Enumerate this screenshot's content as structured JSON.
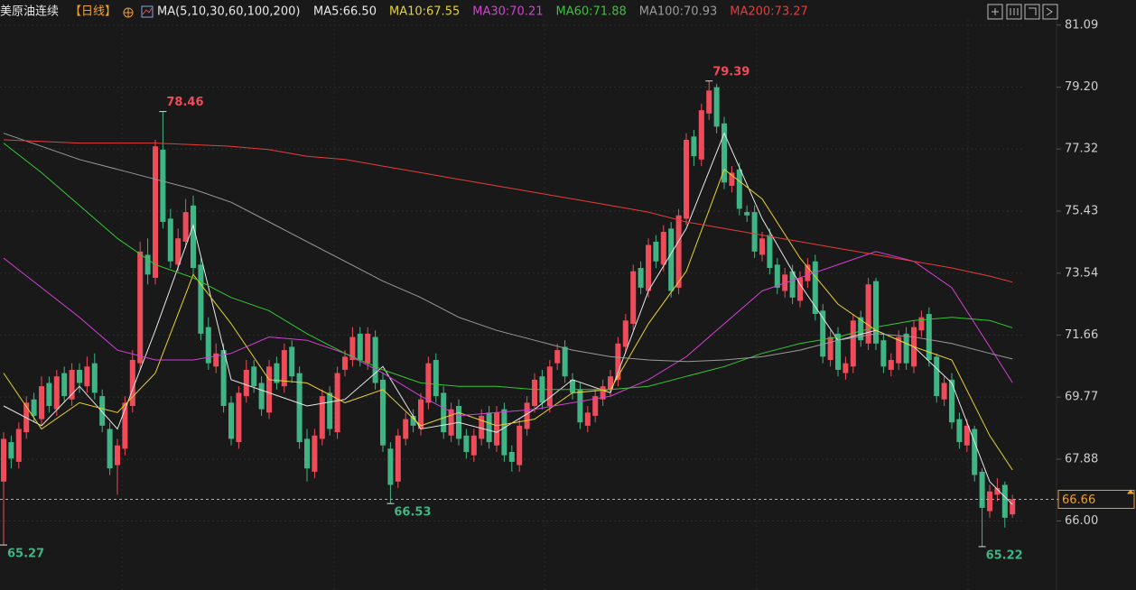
{
  "chart_data": {
    "type": "candlestick",
    "title": "美原油连续",
    "period": "【日线】",
    "ma_label": "MA(5,10,30,60,100,200)",
    "up_color": "#ee4c5a",
    "down_color": "#3fb484",
    "last_line_color": "#f0a030",
    "grid": true,
    "ylim": [
      63.9,
      81.25
    ],
    "yticks": [
      81.09,
      {
        "value": 79.2,
        "label": "79.20"
      },
      77.32,
      75.43,
      73.54,
      71.66,
      69.77,
      67.88,
      {
        "value": 66,
        "label": "66.00"
      }
    ],
    "open": [
      67.2,
      68.4,
      67.8,
      68.7,
      69.7,
      69.1,
      70.2,
      69.4,
      70.5,
      69.7,
      70.6,
      70.1,
      70.8,
      69.8,
      68.8,
      67.7,
      68.2,
      69.5,
      70.8,
      74.1,
      73.4,
      77.3,
      75.2,
      73.8,
      74.5,
      75.6,
      73.8,
      71.9,
      70.7,
      71.2,
      69.6,
      68.4,
      69.8,
      70.7,
      70.2,
      69.3,
      70.8,
      70.1,
      71.3,
      70.5,
      68.5,
      67.5,
      68.5,
      69.9,
      68.7,
      70.6,
      70.9,
      71.7,
      70.8,
      71.6,
      70.3,
      68.2,
      67.2,
      68.5,
      69.2,
      68.8,
      69.6,
      70.9,
      69.9,
      68.6,
      69.5,
      68.6,
      68.0,
      68.5,
      69.3,
      68.3,
      69.4,
      68.1,
      67.7,
      68.8,
      69.5,
      70.4,
      69.5,
      70.8,
      71.3,
      70.3,
      70.0,
      68.9,
      69.2,
      69.7,
      70.0,
      70.3,
      71.3,
      72.0,
      73.7,
      73.0,
      74.5,
      73.8,
      74.9,
      73.1,
      75.2,
      77.7,
      77.0,
      78.4,
      79.2,
      78.1,
      76.2,
      76.7,
      75.4,
      75.4,
      74.1,
      74.7,
      73.8,
      73.0,
      73.6,
      72.7,
      73.3,
      73.9,
      72.4,
      70.9,
      71.7,
      70.5,
      70.7,
      72.2,
      71.4,
      73.3,
      71.5,
      70.6,
      70.8,
      71.7,
      70.7,
      71.8,
      72.3,
      71.0,
      69.7,
      70.3,
      69.1,
      68.3,
      68.8,
      67.5,
      66.3,
      66.8,
      67.1,
      66.2
    ],
    "high": [
      68.7,
      68.6,
      69.0,
      69.8,
      69.9,
      70.4,
      70.4,
      70.6,
      70.7,
      70.8,
      70.8,
      71.0,
      71.1,
      70.0,
      69.0,
      68.5,
      69.8,
      71.2,
      74.5,
      74.6,
      77.6,
      78.46,
      75.5,
      74.9,
      75.8,
      75.9,
      74.0,
      72.2,
      71.4,
      71.4,
      69.8,
      70.1,
      70.9,
      70.9,
      70.4,
      70.9,
      71.0,
      71.4,
      71.5,
      70.7,
      68.8,
      68.8,
      70.0,
      70.1,
      70.7,
      71.2,
      71.9,
      71.9,
      71.9,
      71.8,
      70.5,
      68.4,
      68.8,
      69.3,
      69.4,
      69.9,
      71.0,
      71.1,
      70.1,
      69.6,
      69.7,
      68.8,
      68.8,
      69.4,
      69.5,
      69.5,
      69.6,
      68.3,
      69.1,
      69.8,
      70.5,
      70.6,
      70.9,
      71.4,
      71.5,
      70.5,
      70.2,
      69.5,
      70.0,
      70.3,
      70.6,
      71.6,
      72.3,
      73.8,
      73.9,
      74.6,
      74.7,
      75.0,
      75.1,
      75.5,
      77.8,
      77.9,
      78.7,
      79.39,
      79.3,
      78.3,
      76.8,
      76.9,
      75.6,
      75.6,
      74.8,
      74.9,
      74.0,
      73.7,
      73.8,
      73.6,
      74.0,
      74.1,
      72.6,
      71.8,
      71.9,
      71.0,
      72.3,
      72.4,
      73.4,
      73.4,
      71.7,
      71.1,
      71.8,
      71.9,
      72.1,
      72.4,
      72.5,
      71.1,
      70.4,
      70.5,
      69.3,
      69.1,
      68.9,
      67.6,
      67.1,
      67.3,
      67.2,
      66.8
    ],
    "low": [
      65.27,
      67.6,
      67.6,
      68.5,
      69.0,
      68.9,
      69.3,
      69.2,
      69.6,
      69.5,
      69.9,
      69.9,
      69.7,
      68.7,
      67.4,
      66.8,
      68.0,
      69.3,
      70.6,
      73.2,
      73.2,
      74.9,
      73.7,
      73.6,
      74.3,
      73.5,
      71.5,
      70.6,
      70.5,
      69.3,
      68.3,
      68.2,
      69.6,
      69.9,
      69.2,
      69.1,
      70.0,
      69.9,
      70.2,
      68.2,
      67.2,
      67.3,
      68.3,
      68.6,
      68.5,
      70.4,
      70.7,
      70.7,
      70.6,
      70.0,
      68.1,
      66.53,
      67.0,
      68.3,
      68.7,
      68.6,
      69.4,
      69.6,
      68.5,
      68.4,
      68.3,
      67.9,
      67.8,
      68.3,
      68.2,
      68.1,
      67.8,
      67.5,
      67.5,
      68.6,
      69.3,
      69.4,
      69.3,
      70.6,
      70.2,
      69.7,
      68.8,
      68.7,
      69.0,
      69.5,
      69.8,
      70.1,
      71.1,
      71.8,
      72.9,
      72.8,
      73.7,
      73.6,
      72.8,
      72.9,
      75.0,
      76.8,
      76.8,
      78.2,
      77.8,
      76.1,
      76.0,
      75.3,
      75.1,
      74.0,
      73.9,
      73.5,
      72.9,
      72.8,
      72.6,
      72.5,
      73.1,
      72.1,
      70.8,
      70.7,
      70.4,
      70.3,
      70.5,
      71.3,
      71.2,
      71.2,
      70.5,
      70.4,
      70.6,
      70.6,
      70.5,
      71.6,
      70.7,
      69.6,
      69.5,
      68.8,
      68.2,
      68.1,
      67.2,
      65.22,
      66.1,
      66.6,
      65.8,
      66.1
    ],
    "close": [
      68.5,
      67.9,
      68.8,
      69.6,
      69.2,
      70.1,
      69.5,
      70.4,
      69.8,
      70.6,
      70.2,
      70.7,
      69.9,
      68.9,
      67.6,
      68.3,
      69.6,
      70.9,
      74.2,
      73.5,
      77.4,
      75.1,
      73.9,
      74.6,
      75.4,
      73.7,
      71.7,
      70.8,
      71.1,
      69.5,
      68.5,
      69.9,
      70.6,
      70.1,
      69.4,
      70.7,
      70.2,
      71.2,
      70.4,
      68.4,
      67.6,
      68.6,
      69.8,
      68.8,
      70.5,
      71.0,
      71.6,
      70.9,
      71.7,
      70.2,
      68.3,
      67.1,
      68.6,
      69.1,
      68.9,
      69.7,
      70.8,
      69.8,
      68.7,
      69.4,
      68.5,
      68.1,
      68.6,
      69.2,
      68.4,
      69.3,
      68.0,
      67.8,
      68.9,
      69.6,
      70.3,
      69.6,
      70.7,
      71.2,
      70.4,
      69.9,
      69.0,
      69.3,
      69.8,
      70.1,
      70.4,
      71.4,
      72.1,
      73.6,
      73.1,
      74.4,
      73.9,
      74.8,
      73.0,
      75.3,
      77.6,
      77.1,
      78.5,
      79.1,
      78.0,
      76.3,
      76.6,
      75.5,
      75.3,
      74.2,
      74.6,
      73.7,
      73.1,
      73.5,
      72.8,
      73.4,
      73.8,
      72.3,
      71.0,
      71.6,
      70.6,
      70.8,
      72.1,
      71.5,
      73.2,
      71.4,
      70.7,
      70.9,
      71.6,
      70.8,
      71.9,
      72.2,
      70.9,
      69.8,
      70.2,
      69.0,
      68.4,
      68.9,
      67.4,
      66.4,
      66.9,
      67.0,
      66.1,
      66.66
    ],
    "ma_x": [
      0,
      5,
      10,
      15,
      20,
      25,
      30,
      35,
      40,
      45,
      50,
      55,
      60,
      65,
      70,
      75,
      80,
      85,
      90,
      95,
      100,
      105,
      110,
      115,
      120,
      125,
      130,
      133
    ],
    "series": [
      {
        "name": "MA5",
        "legend_label": "MA5:66.50",
        "color": "#e8e8e8",
        "values": [
          69.5,
          68.9,
          70.1,
          68.8,
          71.8,
          75.0,
          70.3,
          69.9,
          69.5,
          69.7,
          70.7,
          68.8,
          69.0,
          68.7,
          69.4,
          70.3,
          69.9,
          73.0,
          74.9,
          77.8,
          75.2,
          73.2,
          71.5,
          71.8,
          71.3,
          70.2,
          67.2,
          66.5
        ]
      },
      {
        "name": "MA10",
        "legend_label": "MA10:67.55",
        "color": "#e6d22e",
        "values": [
          70.5,
          68.8,
          69.6,
          69.3,
          70.5,
          73.5,
          72.0,
          70.3,
          70.2,
          69.6,
          70.0,
          68.9,
          69.3,
          68.9,
          69.1,
          69.9,
          70.0,
          72.0,
          73.6,
          76.7,
          75.8,
          74.0,
          72.6,
          71.8,
          71.3,
          70.9,
          68.6,
          67.55
        ]
      },
      {
        "name": "MA30",
        "legend_label": "MA30:70.21",
        "color": "#d440d4",
        "values": [
          74.0,
          73.1,
          72.2,
          71.2,
          70.9,
          70.9,
          71.1,
          71.6,
          71.5,
          71.1,
          70.5,
          69.8,
          69.2,
          69.3,
          69.4,
          69.6,
          69.8,
          70.3,
          71.0,
          72.0,
          73.0,
          73.4,
          73.8,
          74.2,
          73.9,
          73.1,
          71.3,
          70.21
        ]
      },
      {
        "name": "MA60",
        "legend_label": "MA60:71.88",
        "color": "#34c734",
        "values": [
          77.5,
          76.6,
          75.6,
          74.6,
          73.8,
          73.4,
          72.8,
          72.4,
          71.7,
          71.1,
          70.6,
          70.2,
          70.1,
          70.1,
          70.0,
          70.0,
          70.0,
          70.1,
          70.4,
          70.7,
          71.1,
          71.4,
          71.6,
          71.9,
          72.1,
          72.2,
          72.1,
          71.88
        ]
      },
      {
        "name": "MA100",
        "legend_label": "MA100:70.93",
        "color": "#9a9a9a",
        "values": [
          77.8,
          77.4,
          77.0,
          76.7,
          76.4,
          76.1,
          75.7,
          75.1,
          74.5,
          73.9,
          73.3,
          72.8,
          72.2,
          71.8,
          71.5,
          71.2,
          71.0,
          70.9,
          70.85,
          70.9,
          71.0,
          71.2,
          71.5,
          71.7,
          71.6,
          71.4,
          71.1,
          70.93
        ]
      },
      {
        "name": "MA200",
        "legend_label": "MA200:73.27",
        "color": "#e83b3b",
        "values": [
          77.6,
          77.55,
          77.5,
          77.5,
          77.5,
          77.45,
          77.4,
          77.3,
          77.1,
          77.0,
          76.8,
          76.6,
          76.4,
          76.2,
          76.0,
          75.8,
          75.6,
          75.4,
          75.1,
          74.9,
          74.7,
          74.5,
          74.3,
          74.1,
          73.9,
          73.7,
          73.45,
          73.27
        ]
      }
    ]
  }
}
